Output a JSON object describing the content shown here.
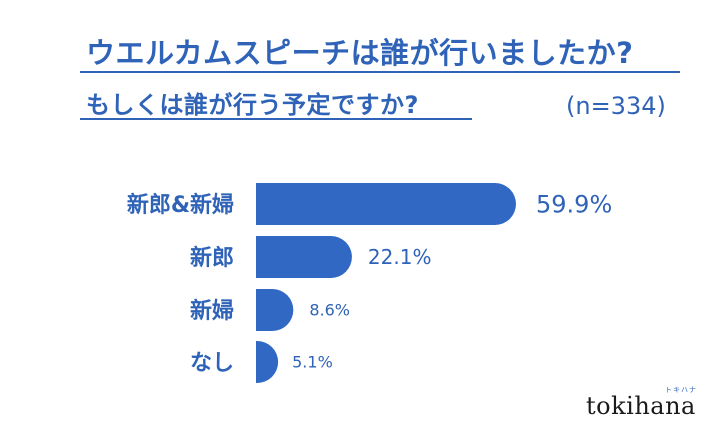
{
  "header": {
    "title_line1": "ウエルカムスピーチは誰が行いましたか?",
    "title_line2": "もしくは誰が行う予定ですか?",
    "sample_size": "(n=334)"
  },
  "colors": {
    "accent": "#2f63b8",
    "bar": "#3168c4"
  },
  "chart_data": {
    "type": "bar",
    "orientation": "horizontal",
    "categories": [
      "新郎&新婦",
      "新郎",
      "新婦",
      "なし"
    ],
    "values": [
      59.9,
      22.1,
      8.6,
      5.1
    ],
    "value_labels": [
      "59.9%",
      "22.1%",
      "8.6%",
      "5.1%"
    ],
    "unit": "%",
    "xlim": [
      0,
      100
    ],
    "grid": false,
    "legend": "none"
  },
  "brand": {
    "logo_text": "tokihana",
    "logo_kana": "トキハナ"
  }
}
